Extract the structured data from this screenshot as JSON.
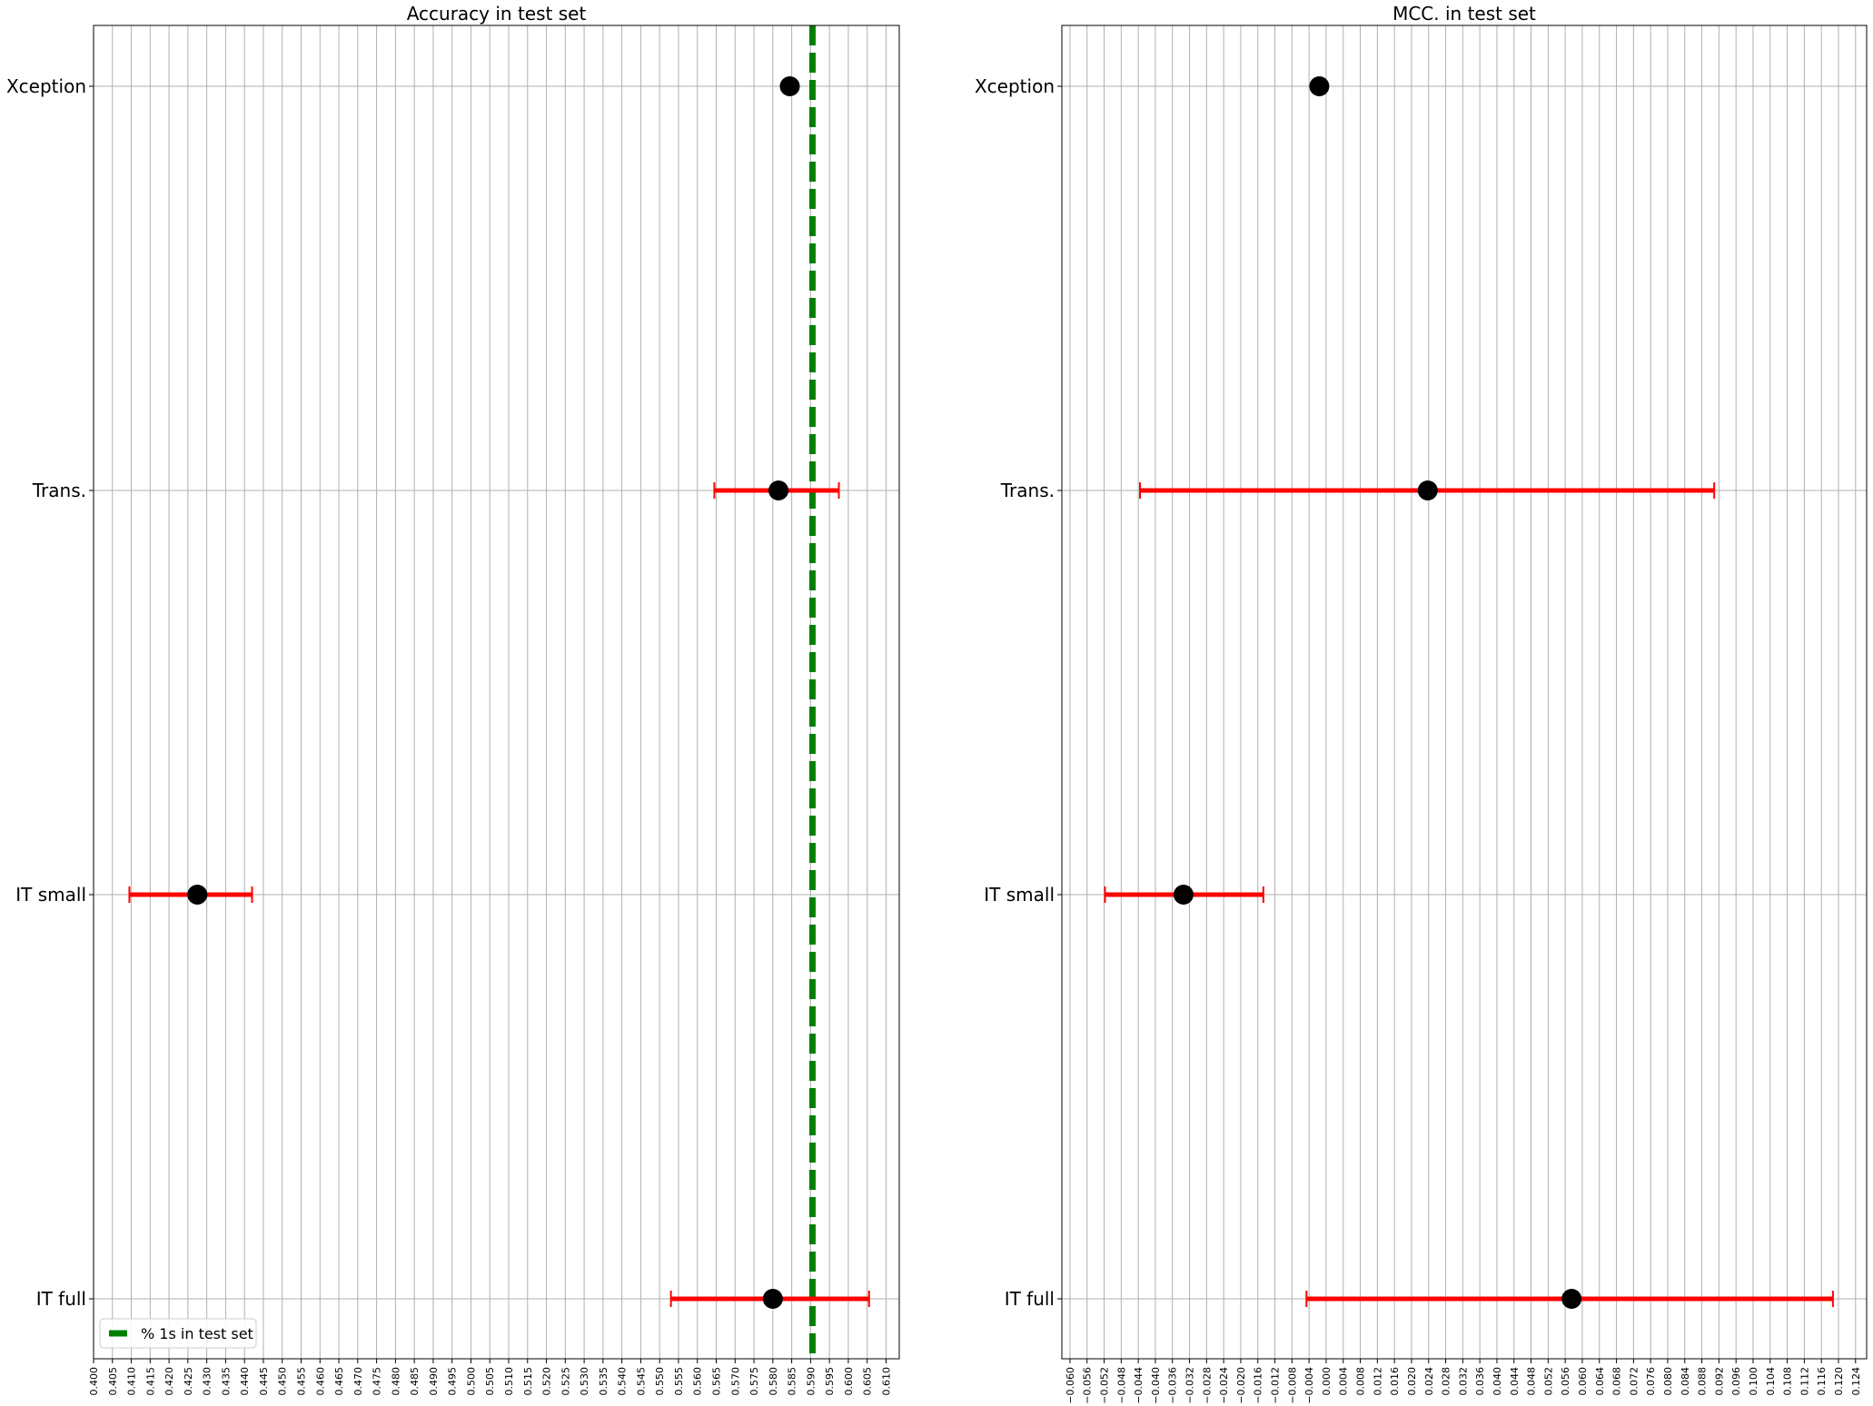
{
  "chart_data": [
    {
      "type": "scatter",
      "title": "Accuracy in test set",
      "xlabel": "",
      "ylabel": "",
      "categories": [
        "Xception",
        "Trans.",
        "IT small",
        "IT full"
      ],
      "xlim": [
        0.4,
        0.6135
      ],
      "xticks": [
        "0.400",
        "0.405",
        "0.410",
        "0.415",
        "0.420",
        "0.425",
        "0.430",
        "0.435",
        "0.440",
        "0.445",
        "0.450",
        "0.455",
        "0.460",
        "0.465",
        "0.470",
        "0.475",
        "0.480",
        "0.485",
        "0.490",
        "0.495",
        "0.500",
        "0.505",
        "0.510",
        "0.515",
        "0.520",
        "0.525",
        "0.530",
        "0.535",
        "0.540",
        "0.545",
        "0.550",
        "0.555",
        "0.560",
        "0.565",
        "0.570",
        "0.575",
        "0.580",
        "0.585",
        "0.590",
        "0.595",
        "0.600",
        "0.605",
        "0.610"
      ],
      "points": [
        {
          "category": "Xception",
          "value": 0.5845,
          "ci": null
        },
        {
          "category": "Trans.",
          "value": 0.5815,
          "ci": [
            0.5645,
            0.5975
          ]
        },
        {
          "category": "IT small",
          "value": 0.4275,
          "ci": [
            0.4095,
            0.442
          ]
        },
        {
          "category": "IT full",
          "value": 0.58,
          "ci": [
            0.553,
            0.6055
          ]
        }
      ],
      "reference_line": {
        "x": 0.5905,
        "label": "% 1s in test set",
        "color": "#008000",
        "style": "dashed"
      },
      "legend": {
        "position": "lower-left",
        "entries": [
          "% 1s in test set"
        ]
      },
      "grid": true,
      "colors": {
        "point": "#000000",
        "errorbar": "#ff0000",
        "reference": "#008000",
        "grid": "#b0b0b0"
      }
    },
    {
      "type": "scatter",
      "title": "MCC. in test set",
      "xlabel": "",
      "ylabel": "",
      "categories": [
        "Xception",
        "Trans.",
        "IT small",
        "IT full"
      ],
      "xlim": [
        -0.0619,
        0.1266
      ],
      "xticks": [
        "−0.060",
        "−0.056",
        "−0.052",
        "−0.048",
        "−0.044",
        "−0.040",
        "−0.036",
        "−0.032",
        "−0.028",
        "−0.024",
        "−0.020",
        "−0.016",
        "−0.012",
        "−0.008",
        "−0.004",
        "0.000",
        "0.004",
        "0.008",
        "0.012",
        "0.016",
        "0.020",
        "0.024",
        "0.028",
        "0.032",
        "0.036",
        "0.040",
        "0.044",
        "0.048",
        "0.052",
        "0.056",
        "0.060",
        "0.064",
        "0.068",
        "0.072",
        "0.076",
        "0.080",
        "0.084",
        "0.088",
        "0.092",
        "0.096",
        "0.100",
        "0.104",
        "0.108",
        "0.112",
        "0.116",
        "0.120",
        "0.124"
      ],
      "points": [
        {
          "category": "Xception",
          "value": -0.0016,
          "ci": null
        },
        {
          "category": "Trans.",
          "value": 0.0238,
          "ci": [
            -0.0436,
            0.0909
          ]
        },
        {
          "category": "IT small",
          "value": -0.0334,
          "ci": [
            -0.0518,
            -0.0147
          ]
        },
        {
          "category": "IT full",
          "value": 0.0575,
          "ci": [
            -0.0046,
            0.1187
          ]
        }
      ],
      "grid": true,
      "colors": {
        "point": "#000000",
        "errorbar": "#ff0000",
        "grid": "#b0b0b0"
      }
    }
  ]
}
